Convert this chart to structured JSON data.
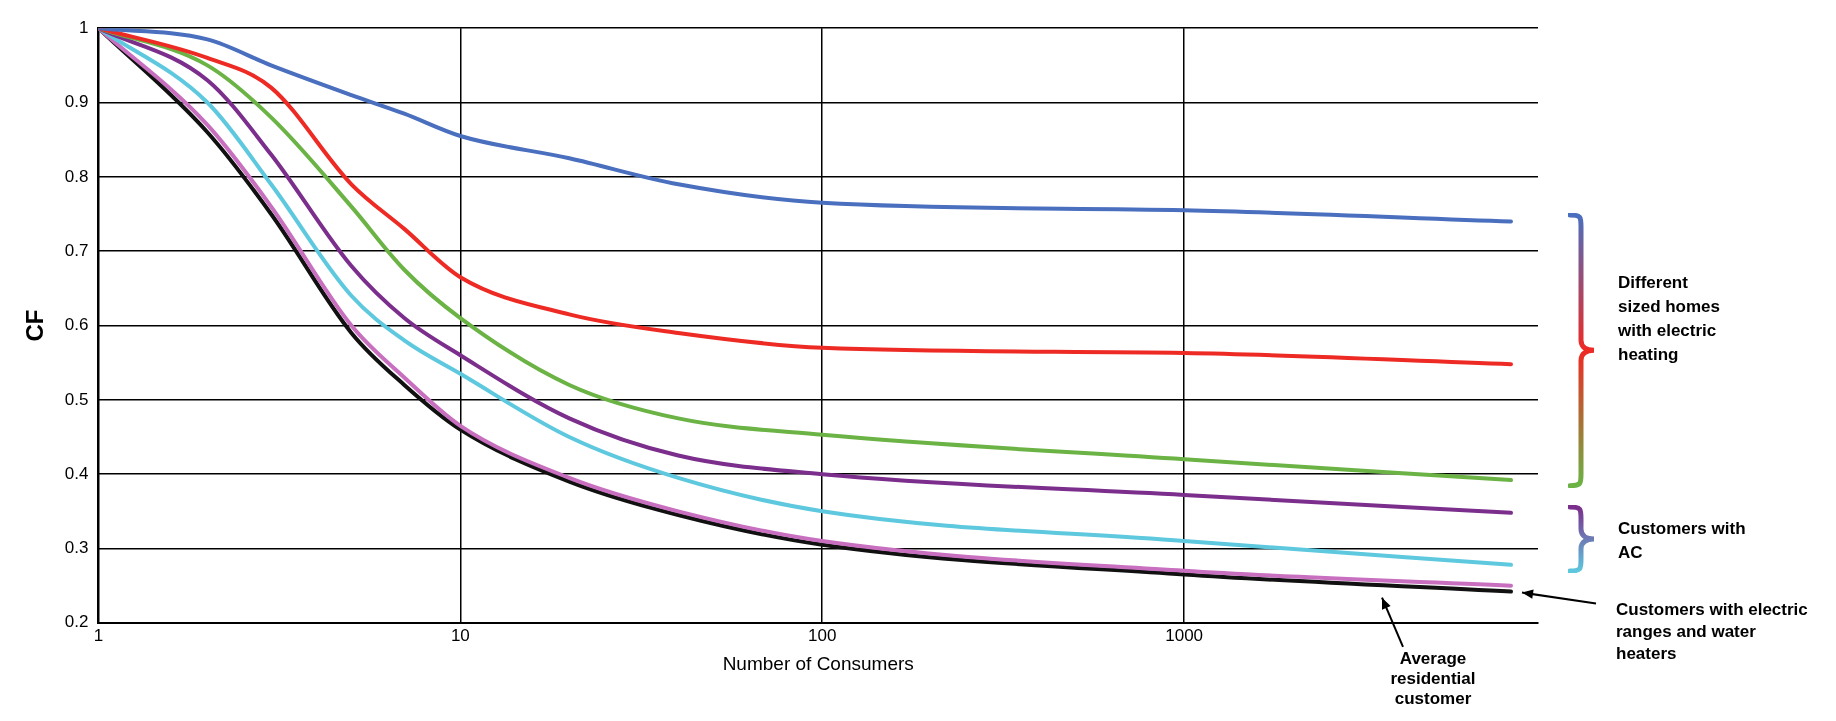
{
  "chart_data": {
    "type": "line",
    "xlabel": "Number of Consumers",
    "ylabel": "CF",
    "log": "x",
    "grid": true,
    "legend": false,
    "marker": "none",
    "line_style": "solid",
    "x": [
      1,
      2,
      3,
      5,
      7,
      10,
      20,
      40,
      100,
      1000,
      8000
    ],
    "xlim": [
      1,
      9500
    ],
    "xticks": [
      1,
      10,
      100,
      1000
    ],
    "ylim": [
      0.2,
      1
    ],
    "yticks": [
      0.2,
      0.3,
      0.4,
      0.5,
      0.6,
      0.7,
      0.8,
      0.9,
      1
    ],
    "series": [
      {
        "color": "#4a6fbf",
        "values": [
          1,
          0.985,
          0.95,
          0.91,
          0.885,
          0.855,
          0.825,
          0.79,
          0.765,
          0.755,
          0.74
        ]
      },
      {
        "color": "#ee2a24",
        "values": [
          1,
          0.96,
          0.92,
          0.79,
          0.73,
          0.665,
          0.615,
          0.59,
          0.57,
          0.563,
          0.548
        ]
      },
      {
        "color": "#6ab344",
        "values": [
          1,
          0.95,
          0.88,
          0.76,
          0.675,
          0.61,
          0.52,
          0.475,
          0.453,
          0.42,
          0.392
        ]
      },
      {
        "color": "#7b2e8c",
        "values": [
          1,
          0.93,
          0.83,
          0.68,
          0.61,
          0.56,
          0.475,
          0.425,
          0.4,
          0.372,
          0.348
        ]
      },
      {
        "color": "#5dc8de",
        "values": [
          1,
          0.9,
          0.79,
          0.64,
          0.58,
          0.535,
          0.45,
          0.395,
          0.35,
          0.31,
          0.278
        ]
      },
      {
        "color": "#c86fc0",
        "values": [
          1,
          0.87,
          0.76,
          0.6,
          0.53,
          0.465,
          0.395,
          0.35,
          0.31,
          0.27,
          0.25
        ]
      },
      {
        "color": "#111111",
        "values": [
          1,
          0.86,
          0.75,
          0.59,
          0.52,
          0.46,
          0.39,
          0.345,
          0.305,
          0.265,
          0.242
        ]
      }
    ],
    "annotations": [
      "Different sized homes with electric heating",
      "Customers with AC",
      "Average residential customer",
      "Customers with electric ranges and water heaters"
    ]
  }
}
